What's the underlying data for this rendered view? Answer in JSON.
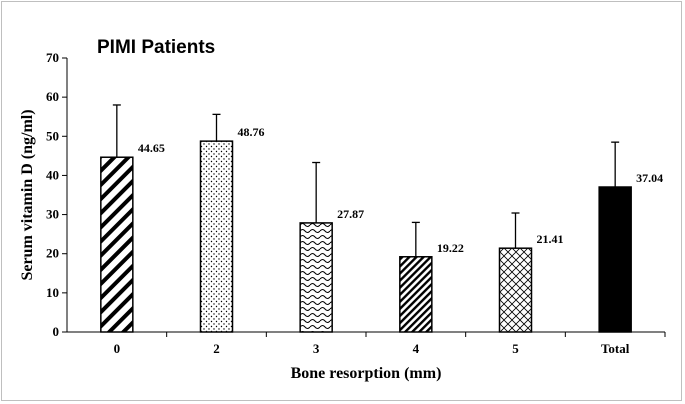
{
  "chart_data": {
    "type": "bar",
    "title": "PIMI Patients",
    "xlabel": "Bone resorption (mm)",
    "ylabel": "Serum vitamin D (ng/ml)",
    "categories": [
      "0",
      "2",
      "3",
      "4",
      "5",
      "Total"
    ],
    "values": [
      44.65,
      48.76,
      27.87,
      19.22,
      21.41,
      37.04
    ],
    "error_upper": [
      58.0,
      55.6,
      43.3,
      28.0,
      30.4,
      48.5
    ],
    "data_labels": [
      "44.65",
      "48.76",
      "27.87",
      "19.22",
      "21.41",
      "37.04"
    ],
    "patterns": [
      "wide-diagonal-stripes",
      "dots",
      "waves",
      "dense-diagonal-stripes",
      "crosshatch",
      "solid-black"
    ],
    "ylim": [
      0,
      70
    ],
    "yticks": [
      "0",
      "10",
      "20",
      "30",
      "40",
      "50",
      "60",
      "70"
    ],
    "grid": false,
    "legend": "none"
  }
}
